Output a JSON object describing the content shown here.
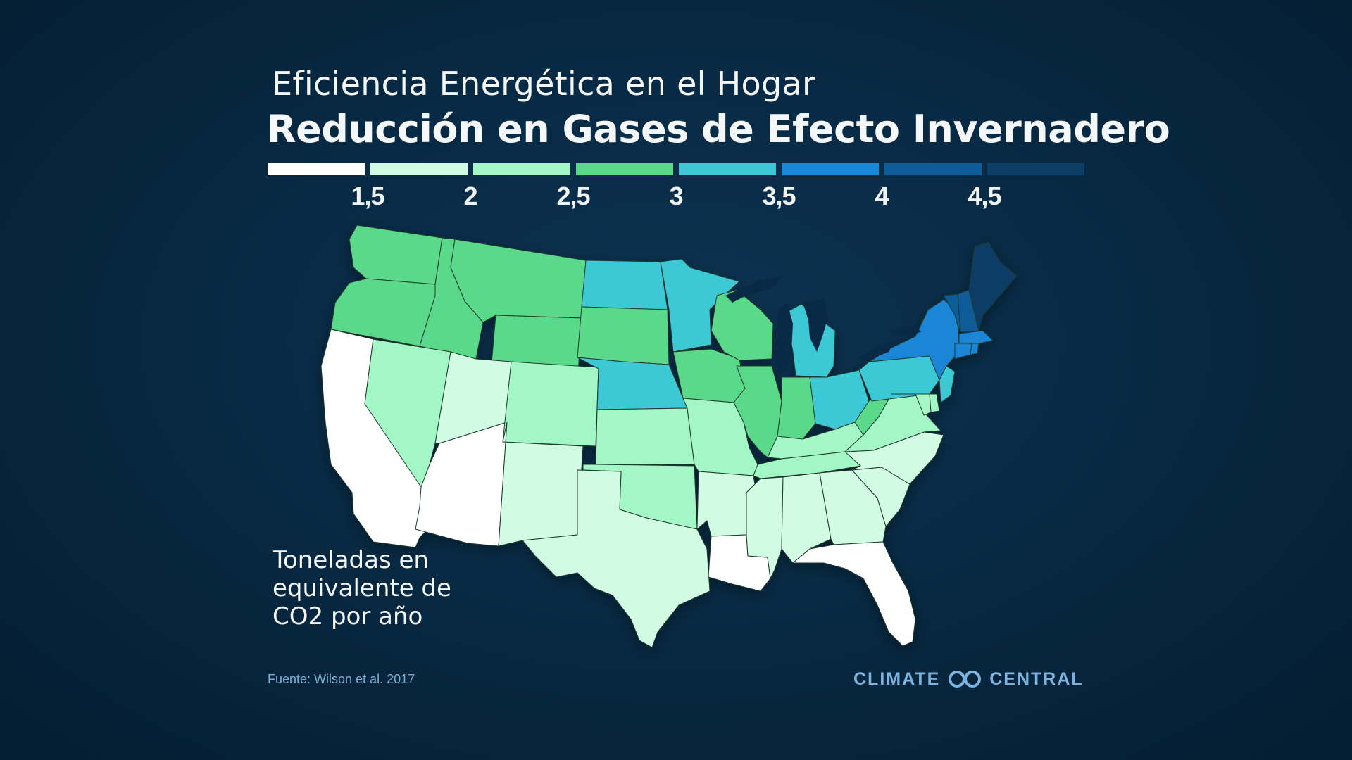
{
  "title": "Eficiencia Energética en el Hogar",
  "subtitle": "Reducción en Gases de Efecto Invernadero",
  "legend": {
    "colors": [
      "#ffffff",
      "#d2fbe4",
      "#a3f6c6",
      "#5ad98a",
      "#3ec8d6",
      "#1a86d6",
      "#0d5b98",
      "#0c3e66"
    ],
    "ticks": [
      "1,5",
      "2",
      "2,5",
      "3",
      "3,5",
      "4",
      "4,5"
    ]
  },
  "unit_label": "Toneladas en equivalente de CO2 por año",
  "source": "Fuente: Wilson et al. 2017",
  "brand": {
    "left": "CLIMATE",
    "right": "CENTRAL",
    "logo_icon": "climate-central-logo-icon"
  },
  "map_data": {
    "type": "choropleth",
    "region": "Estados Unidos contiguos",
    "bins": [
      "<1,5",
      "1,5–2",
      "2–2,5",
      "2,5–3",
      "3–3,5",
      "3,5–4",
      "4–4,5",
      ">4,5"
    ],
    "states": [
      {
        "id": "WA",
        "bin": 3
      },
      {
        "id": "OR",
        "bin": 3
      },
      {
        "id": "ID",
        "bin": 3
      },
      {
        "id": "MT",
        "bin": 3
      },
      {
        "id": "WY",
        "bin": 3
      },
      {
        "id": "CA",
        "bin": 0
      },
      {
        "id": "NV",
        "bin": 2
      },
      {
        "id": "UT",
        "bin": 1
      },
      {
        "id": "AZ",
        "bin": 0
      },
      {
        "id": "CO",
        "bin": 2
      },
      {
        "id": "NM",
        "bin": 1
      },
      {
        "id": "ND",
        "bin": 4
      },
      {
        "id": "SD",
        "bin": 3
      },
      {
        "id": "NE",
        "bin": 4
      },
      {
        "id": "KS",
        "bin": 2
      },
      {
        "id": "OK",
        "bin": 2
      },
      {
        "id": "TX",
        "bin": 1
      },
      {
        "id": "MN",
        "bin": 4
      },
      {
        "id": "IA",
        "bin": 3
      },
      {
        "id": "MO",
        "bin": 2
      },
      {
        "id": "AR",
        "bin": 1
      },
      {
        "id": "LA",
        "bin": 0
      },
      {
        "id": "WI",
        "bin": 3
      },
      {
        "id": "IL",
        "bin": 3
      },
      {
        "id": "MI",
        "bin": 4
      },
      {
        "id": "IN",
        "bin": 3
      },
      {
        "id": "OH",
        "bin": 4
      },
      {
        "id": "KY",
        "bin": 2
      },
      {
        "id": "TN",
        "bin": 2
      },
      {
        "id": "MS",
        "bin": 1
      },
      {
        "id": "AL",
        "bin": 1
      },
      {
        "id": "GA",
        "bin": 1
      },
      {
        "id": "FL",
        "bin": 0
      },
      {
        "id": "SC",
        "bin": 1
      },
      {
        "id": "NC",
        "bin": 1
      },
      {
        "id": "VA",
        "bin": 2
      },
      {
        "id": "WV",
        "bin": 3
      },
      {
        "id": "PA",
        "bin": 4
      },
      {
        "id": "NY",
        "bin": 5
      },
      {
        "id": "VT",
        "bin": 6
      },
      {
        "id": "NH",
        "bin": 6
      },
      {
        "id": "ME",
        "bin": 7
      },
      {
        "id": "MA",
        "bin": 5
      },
      {
        "id": "CT",
        "bin": 5
      },
      {
        "id": "RI",
        "bin": 5
      },
      {
        "id": "NJ",
        "bin": 4
      },
      {
        "id": "DE",
        "bin": 2
      },
      {
        "id": "MD",
        "bin": 2
      }
    ]
  }
}
